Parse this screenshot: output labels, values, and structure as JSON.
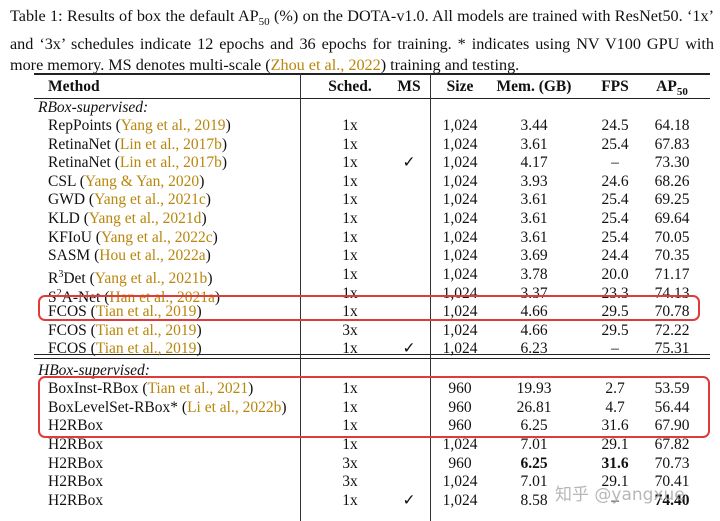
{
  "caption": {
    "p1": "Table 1: Results of box the default AP",
    "p1_sub": "50",
    "p2": " (%) on the DOTA-v1.0. All models are trained with ResNet50. ‘1x’ and ‘3x’ schedules indicate 12 epochs and 36 epochs for training. * indicates using NV V100 GPU with more memory. MS denotes multi-scale (",
    "cite": "Zhou et al., 2022",
    "p3": ") training and testing."
  },
  "headers": {
    "method": "Method",
    "sched": "Sched.",
    "ms": "MS",
    "size": "Size",
    "mem": "Mem. (GB)",
    "fps": "FPS",
    "ap": "AP",
    "ap_sub": "50"
  },
  "groups": {
    "rbox": "RBox-supervised:",
    "hbox": "HBox-supervised:"
  },
  "rows": [
    {
      "name": "RepPoints",
      "cite": "Yang et al., 2019",
      "sched": "1x",
      "ms": "",
      "size": "1,024",
      "mem": "3.44",
      "fps": "24.5",
      "ap": "64.18"
    },
    {
      "name": "RetinaNet",
      "cite": "Lin et al., 2017b",
      "sched": "1x",
      "ms": "",
      "size": "1,024",
      "mem": "3.61",
      "fps": "25.4",
      "ap": "67.83"
    },
    {
      "name": "RetinaNet",
      "cite": "Lin et al., 2017b",
      "sched": "1x",
      "ms": "✓",
      "size": "1,024",
      "mem": "4.17",
      "fps": "–",
      "ap": "73.30"
    },
    {
      "name": "CSL",
      "cite": "Yang & Yan, 2020",
      "sched": "1x",
      "ms": "",
      "size": "1,024",
      "mem": "3.93",
      "fps": "24.6",
      "ap": "68.26"
    },
    {
      "name": "GWD",
      "cite": "Yang et al., 2021c",
      "sched": "1x",
      "ms": "",
      "size": "1,024",
      "mem": "3.61",
      "fps": "25.4",
      "ap": "69.25"
    },
    {
      "name": "KLD",
      "cite": "Yang et al., 2021d",
      "sched": "1x",
      "ms": "",
      "size": "1,024",
      "mem": "3.61",
      "fps": "25.4",
      "ap": "69.64"
    },
    {
      "name": "KFIoU",
      "cite": "Yang et al., 2022c",
      "sched": "1x",
      "ms": "",
      "size": "1,024",
      "mem": "3.61",
      "fps": "25.4",
      "ap": "70.05"
    },
    {
      "name": "SASM",
      "cite": "Hou et al., 2022a",
      "sched": "1x",
      "ms": "",
      "size": "1,024",
      "mem": "3.69",
      "fps": "24.4",
      "ap": "70.35"
    },
    {
      "name": "R",
      "name_sup": "3",
      "name_rest": "Det",
      "cite": "Yang et al., 2021b",
      "sched": "1x",
      "ms": "",
      "size": "1,024",
      "mem": "3.78",
      "fps": "20.0",
      "ap": "71.17"
    },
    {
      "name": "S",
      "name_sup": "2",
      "name_rest": "A-Net",
      "cite": "Han et al., 2021a",
      "sched": "1x",
      "ms": "",
      "size": "1,024",
      "mem": "3.37",
      "fps": "23.3",
      "ap": "74.13"
    },
    {
      "name": "FCOS",
      "cite": "Tian et al., 2019",
      "sched": "1x",
      "ms": "",
      "size": "1,024",
      "mem": "4.66",
      "fps": "29.5",
      "ap": "70.78"
    },
    {
      "name": "FCOS",
      "cite": "Tian et al., 2019",
      "sched": "3x",
      "ms": "",
      "size": "1,024",
      "mem": "4.66",
      "fps": "29.5",
      "ap": "72.22"
    },
    {
      "name": "FCOS",
      "cite": "Tian et al., 2019",
      "sched": "1x",
      "ms": "✓",
      "size": "1,024",
      "mem": "6.23",
      "fps": "–",
      "ap": "75.31"
    },
    {
      "name": "BoxInst-RBox",
      "cite": "Tian et al., 2021",
      "sched": "1x",
      "ms": "",
      "size": "960",
      "mem": "19.93",
      "fps": "2.7",
      "ap": "53.59"
    },
    {
      "name": "BoxLevelSet-RBox*",
      "cite": "Li et al., 2022b",
      "sched": "1x",
      "ms": "",
      "size": "960",
      "mem": "26.81",
      "fps": "4.7",
      "ap": "56.44"
    },
    {
      "name": "H2RBox",
      "cite": "",
      "sched": "1x",
      "ms": "",
      "size": "960",
      "mem": "6.25",
      "fps": "31.6",
      "ap": "67.90"
    },
    {
      "name": "H2RBox",
      "cite": "",
      "sched": "1x",
      "ms": "",
      "size": "1,024",
      "mem": "7.01",
      "fps": "29.1",
      "ap": "67.82"
    },
    {
      "name": "H2RBox",
      "cite": "",
      "sched": "3x",
      "ms": "",
      "size": "960",
      "mem": "6.25",
      "fps": "31.6",
      "ap": "70.73"
    },
    {
      "name": "H2RBox",
      "cite": "",
      "sched": "3x",
      "ms": "",
      "size": "1,024",
      "mem": "7.01",
      "fps": "29.1",
      "ap": "70.41"
    },
    {
      "name": "H2RBox",
      "cite": "",
      "sched": "1x",
      "ms": "✓",
      "size": "1,024",
      "mem": "8.58",
      "fps": "–",
      "ap": "74.40"
    }
  ],
  "watermark": "知乎 @yangxue",
  "highlight_color": "#e03a3a",
  "citation_color": "#b8860b"
}
